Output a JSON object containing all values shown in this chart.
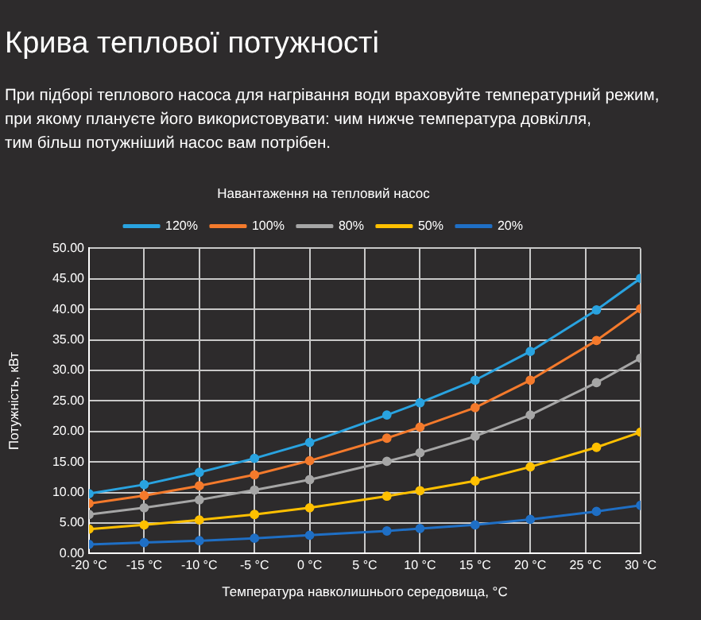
{
  "chart_data": {
    "type": "line",
    "title": "Крива теплової потужності",
    "subtitle": "При підборі теплового насоса для нагрівання води враховуйте температурний режим,\nпри якому плануєте його використовувати: чим нижче температура довкілля,\nтим більш потужніший насос вам потрібен.",
    "legend_title": "Навантаження на тепловий насос",
    "xlabel": "Температура навколишнього середовища, °C",
    "ylabel": "Потужність, кВт",
    "x": [
      -20,
      -15,
      -10,
      -5,
      0,
      7,
      10,
      15,
      20,
      26,
      30
    ],
    "series": [
      {
        "name": "120%",
        "color": "#29a3e0",
        "values": [
          9.8,
          11.3,
          13.3,
          15.6,
          18.2,
          22.7,
          24.7,
          28.4,
          33.1,
          39.9,
          45.1
        ]
      },
      {
        "name": "100%",
        "color": "#f47a2c",
        "values": [
          8.2,
          9.5,
          11.1,
          12.9,
          15.2,
          18.9,
          20.7,
          23.9,
          28.4,
          34.9,
          40.1
        ]
      },
      {
        "name": "80%",
        "color": "#a6a6a6",
        "values": [
          6.4,
          7.5,
          8.8,
          10.4,
          12.1,
          15.1,
          16.5,
          19.2,
          22.7,
          28.0,
          32.0
        ]
      },
      {
        "name": "50%",
        "color": "#ffc000",
        "values": [
          4.0,
          4.7,
          5.5,
          6.4,
          7.5,
          9.4,
          10.3,
          11.9,
          14.2,
          17.4,
          19.9
        ]
      },
      {
        "name": "20%",
        "color": "#1f6fc5",
        "values": [
          1.5,
          1.8,
          2.1,
          2.5,
          3.0,
          3.7,
          4.1,
          4.7,
          5.6,
          6.9,
          7.9
        ]
      }
    ],
    "xlim": [
      -20,
      30
    ],
    "xticks": [
      {
        "value": -20,
        "label": "-20 °C"
      },
      {
        "value": -15,
        "label": "-15 °C"
      },
      {
        "value": -10,
        "label": "-10 °C"
      },
      {
        "value": -5,
        "label": "-5 °C"
      },
      {
        "value": 0,
        "label": "0 °C"
      },
      {
        "value": 5,
        "label": "5 °C"
      },
      {
        "value": 10,
        "label": "10 °C"
      },
      {
        "value": 15,
        "label": "15 °C"
      },
      {
        "value": 20,
        "label": "20 °C"
      },
      {
        "value": 25,
        "label": "25 °C"
      },
      {
        "value": 30,
        "label": "30 °C"
      }
    ],
    "ylim": [
      0,
      50
    ],
    "yticks": [
      {
        "value": 0,
        "label": "0.00"
      },
      {
        "value": 5,
        "label": "5.00"
      },
      {
        "value": 10,
        "label": "10.00"
      },
      {
        "value": 15,
        "label": "15.00"
      },
      {
        "value": 20,
        "label": "20.00"
      },
      {
        "value": 25,
        "label": "25.00"
      },
      {
        "value": 30,
        "label": "30.00"
      },
      {
        "value": 35,
        "label": "35.00"
      },
      {
        "value": 40,
        "label": "40.00"
      },
      {
        "value": 45,
        "label": "45.00"
      },
      {
        "value": 50,
        "label": "50.00"
      }
    ],
    "grid": true,
    "legend": "top",
    "marker": "circle",
    "line_style": "solid"
  }
}
